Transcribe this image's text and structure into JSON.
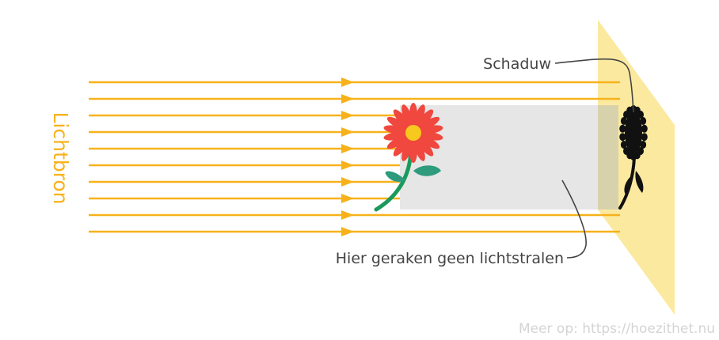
{
  "labels": {
    "light_source": "Lichtbron",
    "shadow": "Schaduw",
    "no_light": "Hier geraken geen lichtstralen",
    "credit": "Meer op: https://hoezithet.nu"
  },
  "colors": {
    "ray": "#f7b21b",
    "light_source_text": "#f7b21b",
    "shadow_region": "#e6e6e6",
    "screen": "#fbe9a0",
    "screen_shadow_overlap": "#d8d2ac",
    "annotation_text": "#444444",
    "credit_text": "#d4d4d4",
    "petal": "#f0473f",
    "flower_center": "#f7c81e",
    "stem": "#1a9a5a",
    "leaf": "#2e9b7c",
    "shadow_flower": "#111111"
  },
  "rays": {
    "count": 10
  }
}
